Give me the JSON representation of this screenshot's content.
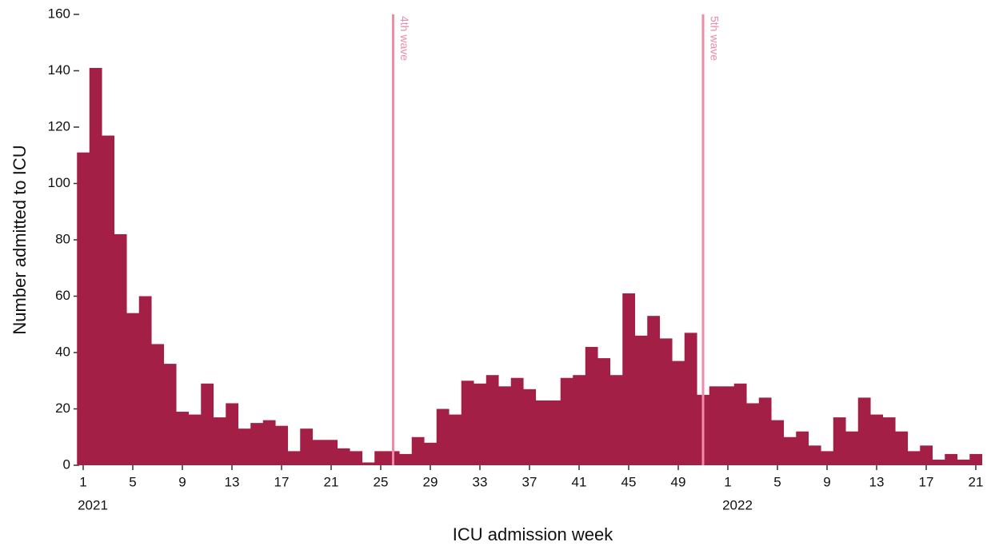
{
  "chart_data": {
    "type": "bar",
    "categories": [
      "1",
      null,
      null,
      null,
      "5",
      null,
      null,
      null,
      "9",
      null,
      null,
      null,
      "13",
      null,
      null,
      null,
      "17",
      null,
      null,
      null,
      "21",
      null,
      null,
      null,
      "25",
      null,
      null,
      null,
      "29",
      null,
      null,
      null,
      "33",
      null,
      null,
      null,
      "37",
      null,
      null,
      null,
      "41",
      null,
      null,
      null,
      "45",
      null,
      null,
      null,
      "49",
      null,
      null,
      null,
      "1",
      null,
      null,
      null,
      "5",
      null,
      null,
      null,
      "9",
      null,
      null,
      null,
      "13",
      null,
      null,
      null,
      "17",
      null,
      null,
      null,
      "21"
    ],
    "values": [
      111,
      141,
      117,
      82,
      54,
      60,
      43,
      36,
      19,
      18,
      29,
      17,
      22,
      13,
      15,
      16,
      14,
      5,
      13,
      9,
      9,
      6,
      5,
      1,
      5,
      5,
      4,
      10,
      8,
      20,
      18,
      30,
      29,
      32,
      28,
      31,
      27,
      23,
      23,
      31,
      32,
      42,
      38,
      32,
      61,
      46,
      53,
      45,
      37,
      47,
      25,
      28,
      28,
      29,
      22,
      24,
      16,
      10,
      12,
      7,
      5,
      17,
      12,
      24,
      18,
      17,
      12,
      5,
      7,
      2,
      4,
      2,
      4
    ],
    "color": "#a31f45",
    "year_labels": [
      "2021",
      "2022"
    ],
    "x_label": "ICU admission week",
    "y_label": "Number admitted to ICU",
    "ylim": [
      0,
      160
    ],
    "yticks": [
      0,
      20,
      40,
      60,
      80,
      100,
      120,
      140,
      160
    ],
    "grid": false,
    "annotations": [
      {
        "text": "4th wave",
        "category": 25,
        "color": "#ef8ba6"
      },
      {
        "text": "5th wave",
        "category": 50,
        "color": "#ef8ba6"
      }
    ]
  }
}
